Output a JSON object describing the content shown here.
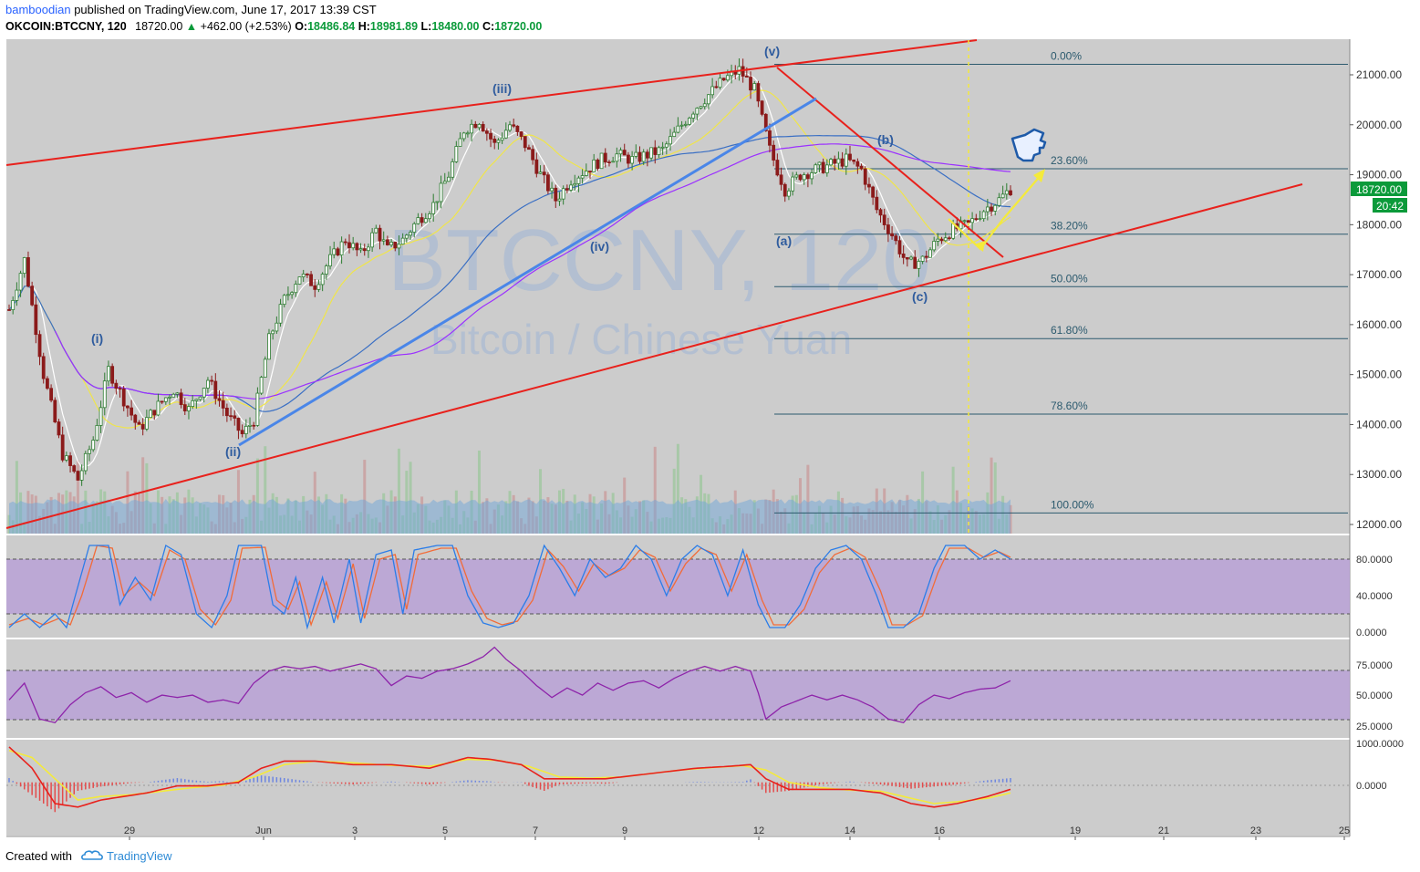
{
  "header": {
    "author": "bamboodian",
    "published_text": "published on TradingView.com, June 17, 2017 13:39 CST",
    "symbol": "OKCOIN:BTCCNY, 120",
    "last": "18720.00",
    "change": "+462.00 (+2.53%)",
    "o_label": "O:",
    "o_value": "18486.84",
    "h_label": "H:",
    "h_value": "18981.89",
    "l_label": "L:",
    "l_value": "18480.00",
    "c_label": "C:",
    "c_value": "18720.00"
  },
  "footer": {
    "created_with": "Created with",
    "brand": "TradingView"
  },
  "watermark": {
    "title": "BTCCNY, 120",
    "subtitle": "Bitcoin / Chinese Yuan"
  },
  "colors": {
    "chart_bg": "#cccccc",
    "up": "#2e7d32",
    "down": "#8b1a1a",
    "trendline": "#e8211c",
    "wave_line": "#4a86e8",
    "fib": "#2c5a6e",
    "sma_yellow": "#f0e54a",
    "sma_blue": "#3a6fc4",
    "sma_purple": "#9b30ff",
    "price_badge": "#0b9a3a",
    "osc_band": "#b9a1d6"
  },
  "price_label": {
    "value": "18720.00",
    "timer": "20:42"
  },
  "chart_data": {
    "type": "candlestick",
    "title": "BTCCNY, 120",
    "subtitle": "Bitcoin / Chinese Yuan",
    "ylim": [
      11800,
      21700
    ],
    "y_ticks": [
      "21000.00",
      "20000.00",
      "19000.00",
      "18000.00",
      "17000.00",
      "16000.00",
      "15000.00",
      "14000.00",
      "13000.00",
      "12000.00"
    ],
    "x_ticks": [
      "29",
      "Jun",
      "3",
      "5",
      "7",
      "9",
      "12",
      "14",
      "16",
      "19",
      "21",
      "23",
      "25"
    ],
    "fib_levels": [
      {
        "label": "0.00%",
        "price": 21210
      },
      {
        "label": "23.60%",
        "price": 19120
      },
      {
        "label": "38.20%",
        "price": 17810
      },
      {
        "label": "50.00%",
        "price": 16760
      },
      {
        "label": "61.80%",
        "price": 15720
      },
      {
        "label": "78.60%",
        "price": 14210
      },
      {
        "label": "100.00%",
        "price": 12230
      }
    ],
    "wave_labels": [
      "(i)",
      "(ii)",
      "(iii)",
      "(iv)",
      "(v)",
      "(a)",
      "(b)",
      "(c)"
    ],
    "close_path": [
      [
        0,
        16300
      ],
      [
        4,
        17300
      ],
      [
        9,
        15000
      ],
      [
        14,
        13400
      ],
      [
        18,
        12900
      ],
      [
        22,
        13700
      ],
      [
        26,
        15100
      ],
      [
        30,
        14500
      ],
      [
        34,
        13900
      ],
      [
        38,
        14300
      ],
      [
        43,
        14700
      ],
      [
        47,
        14300
      ],
      [
        52,
        14900
      ],
      [
        57,
        14200
      ],
      [
        61,
        13800
      ],
      [
        64,
        14100
      ],
      [
        68,
        15700
      ],
      [
        72,
        16500
      ],
      [
        76,
        17000
      ],
      [
        80,
        16800
      ],
      [
        84,
        17300
      ],
      [
        88,
        17700
      ],
      [
        92,
        17400
      ],
      [
        96,
        17900
      ],
      [
        99,
        17500
      ],
      [
        103,
        17700
      ],
      [
        107,
        18100
      ],
      [
        111,
        18400
      ],
      [
        115,
        19000
      ],
      [
        119,
        19900
      ],
      [
        123,
        20100
      ],
      [
        127,
        19600
      ],
      [
        131,
        20000
      ],
      [
        135,
        19600
      ],
      [
        139,
        19000
      ],
      [
        143,
        18500
      ],
      [
        147,
        18900
      ],
      [
        151,
        19100
      ],
      [
        155,
        19300
      ],
      [
        159,
        19400
      ],
      [
        163,
        19300
      ],
      [
        167,
        19400
      ],
      [
        171,
        19500
      ],
      [
        175,
        19900
      ],
      [
        179,
        20300
      ],
      [
        183,
        20600
      ],
      [
        187,
        20900
      ],
      [
        191,
        21100
      ],
      [
        195,
        20700
      ],
      [
        199,
        19500
      ],
      [
        203,
        18700
      ],
      [
        207,
        19000
      ],
      [
        211,
        19100
      ],
      [
        215,
        19200
      ],
      [
        219,
        19300
      ],
      [
        223,
        19100
      ],
      [
        227,
        18300
      ],
      [
        231,
        17800
      ],
      [
        235,
        17200
      ],
      [
        239,
        17300
      ],
      [
        243,
        17700
      ],
      [
        247,
        17900
      ],
      [
        251,
        18000
      ],
      [
        255,
        18300
      ],
      [
        259,
        18500
      ],
      [
        262,
        18720
      ]
    ],
    "volume_path": [
      [
        0,
        12600
      ],
      [
        40,
        12400
      ],
      [
        80,
        12500
      ],
      [
        120,
        12600
      ],
      [
        160,
        12500
      ],
      [
        200,
        12600
      ],
      [
        262,
        12700
      ]
    ],
    "stoch_ylim": [
      0,
      100
    ],
    "stoch_ticks": [
      "80.0000",
      "40.0000",
      "0.0000"
    ],
    "stoch_band": [
      20,
      80
    ],
    "stoch_k": [
      [
        0,
        5
      ],
      [
        4,
        20
      ],
      [
        8,
        5
      ],
      [
        12,
        20
      ],
      [
        15,
        5
      ],
      [
        18,
        50
      ],
      [
        21,
        95
      ],
      [
        26,
        95
      ],
      [
        29,
        30
      ],
      [
        33,
        60
      ],
      [
        37,
        35
      ],
      [
        41,
        95
      ],
      [
        45,
        85
      ],
      [
        49,
        20
      ],
      [
        53,
        5
      ],
      [
        57,
        40
      ],
      [
        60,
        95
      ],
      [
        66,
        95
      ],
      [
        69,
        30
      ],
      [
        72,
        20
      ],
      [
        75,
        60
      ],
      [
        78,
        5
      ],
      [
        82,
        60
      ],
      [
        85,
        10
      ],
      [
        89,
        80
      ],
      [
        92,
        10
      ],
      [
        96,
        85
      ],
      [
        100,
        90
      ],
      [
        103,
        20
      ],
      [
        106,
        90
      ],
      [
        112,
        95
      ],
      [
        116,
        95
      ],
      [
        120,
        40
      ],
      [
        124,
        10
      ],
      [
        128,
        5
      ],
      [
        132,
        10
      ],
      [
        136,
        40
      ],
      [
        140,
        95
      ],
      [
        144,
        70
      ],
      [
        148,
        40
      ],
      [
        152,
        80
      ],
      [
        156,
        60
      ],
      [
        160,
        70
      ],
      [
        164,
        95
      ],
      [
        168,
        80
      ],
      [
        172,
        40
      ],
      [
        176,
        80
      ],
      [
        180,
        95
      ],
      [
        184,
        85
      ],
      [
        188,
        40
      ],
      [
        192,
        90
      ],
      [
        196,
        30
      ],
      [
        199,
        5
      ],
      [
        203,
        5
      ],
      [
        207,
        30
      ],
      [
        211,
        70
      ],
      [
        215,
        90
      ],
      [
        219,
        95
      ],
      [
        223,
        80
      ],
      [
        227,
        40
      ],
      [
        230,
        5
      ],
      [
        234,
        5
      ],
      [
        238,
        20
      ],
      [
        242,
        70
      ],
      [
        245,
        95
      ],
      [
        250,
        95
      ],
      [
        254,
        80
      ],
      [
        258,
        90
      ],
      [
        262,
        80
      ]
    ],
    "stoch_d": [
      [
        0,
        8
      ],
      [
        5,
        15
      ],
      [
        9,
        8
      ],
      [
        13,
        15
      ],
      [
        16,
        8
      ],
      [
        19,
        40
      ],
      [
        23,
        95
      ],
      [
        27,
        92
      ],
      [
        30,
        40
      ],
      [
        34,
        55
      ],
      [
        38,
        40
      ],
      [
        42,
        90
      ],
      [
        46,
        80
      ],
      [
        50,
        25
      ],
      [
        54,
        8
      ],
      [
        58,
        35
      ],
      [
        61,
        92
      ],
      [
        67,
        93
      ],
      [
        70,
        35
      ],
      [
        73,
        25
      ],
      [
        76,
        55
      ],
      [
        79,
        8
      ],
      [
        83,
        55
      ],
      [
        86,
        15
      ],
      [
        90,
        75
      ],
      [
        93,
        15
      ],
      [
        97,
        80
      ],
      [
        101,
        85
      ],
      [
        104,
        25
      ],
      [
        107,
        85
      ],
      [
        113,
        92
      ],
      [
        117,
        92
      ],
      [
        121,
        45
      ],
      [
        125,
        15
      ],
      [
        129,
        8
      ],
      [
        133,
        12
      ],
      [
        137,
        35
      ],
      [
        141,
        90
      ],
      [
        145,
        72
      ],
      [
        149,
        45
      ],
      [
        153,
        75
      ],
      [
        157,
        62
      ],
      [
        161,
        70
      ],
      [
        165,
        90
      ],
      [
        169,
        82
      ],
      [
        173,
        45
      ],
      [
        177,
        75
      ],
      [
        181,
        92
      ],
      [
        185,
        85
      ],
      [
        189,
        45
      ],
      [
        193,
        85
      ],
      [
        197,
        35
      ],
      [
        200,
        8
      ],
      [
        204,
        8
      ],
      [
        208,
        25
      ],
      [
        212,
        65
      ],
      [
        216,
        85
      ],
      [
        220,
        92
      ],
      [
        224,
        82
      ],
      [
        228,
        45
      ],
      [
        231,
        8
      ],
      [
        235,
        8
      ],
      [
        239,
        18
      ],
      [
        243,
        65
      ],
      [
        246,
        92
      ],
      [
        251,
        92
      ],
      [
        255,
        82
      ],
      [
        259,
        88
      ],
      [
        262,
        82
      ]
    ],
    "rsi_ylim": [
      15,
      95
    ],
    "rsi_ticks": [
      "75.0000",
      "50.0000",
      "25.0000"
    ],
    "rsi_band": [
      30,
      70
    ],
    "rsi": [
      [
        0,
        46
      ],
      [
        4,
        60
      ],
      [
        8,
        30
      ],
      [
        12,
        27
      ],
      [
        16,
        42
      ],
      [
        20,
        52
      ],
      [
        24,
        57
      ],
      [
        28,
        48
      ],
      [
        32,
        52
      ],
      [
        36,
        44
      ],
      [
        40,
        50
      ],
      [
        44,
        48
      ],
      [
        48,
        50
      ],
      [
        52,
        44
      ],
      [
        56,
        46
      ],
      [
        60,
        43
      ],
      [
        64,
        60
      ],
      [
        68,
        70
      ],
      [
        72,
        74
      ],
      [
        76,
        72
      ],
      [
        80,
        74
      ],
      [
        84,
        70
      ],
      [
        88,
        73
      ],
      [
        92,
        76
      ],
      [
        96,
        72
      ],
      [
        100,
        58
      ],
      [
        104,
        66
      ],
      [
        108,
        64
      ],
      [
        112,
        70
      ],
      [
        116,
        72
      ],
      [
        120,
        76
      ],
      [
        124,
        82
      ],
      [
        127,
        90
      ],
      [
        130,
        80
      ],
      [
        134,
        70
      ],
      [
        138,
        58
      ],
      [
        142,
        48
      ],
      [
        146,
        56
      ],
      [
        150,
        50
      ],
      [
        154,
        60
      ],
      [
        158,
        54
      ],
      [
        162,
        60
      ],
      [
        166,
        62
      ],
      [
        170,
        56
      ],
      [
        174,
        64
      ],
      [
        178,
        70
      ],
      [
        182,
        74
      ],
      [
        186,
        70
      ],
      [
        190,
        74
      ],
      [
        194,
        70
      ],
      [
        196,
        52
      ],
      [
        198,
        30
      ],
      [
        202,
        40
      ],
      [
        206,
        45
      ],
      [
        210,
        50
      ],
      [
        214,
        46
      ],
      [
        218,
        50
      ],
      [
        222,
        46
      ],
      [
        226,
        40
      ],
      [
        230,
        30
      ],
      [
        234,
        27
      ],
      [
        238,
        42
      ],
      [
        242,
        50
      ],
      [
        246,
        47
      ],
      [
        250,
        52
      ],
      [
        254,
        55
      ],
      [
        258,
        56
      ],
      [
        262,
        62
      ]
    ],
    "macd_ylim": [
      -1400,
      1100
    ],
    "macd_ticks": [
      "1000.0000",
      "0.0000"
    ],
    "macd_line": [
      [
        0,
        1000
      ],
      [
        6,
        400
      ],
      [
        12,
        -600
      ],
      [
        18,
        -700
      ],
      [
        24,
        -500
      ],
      [
        30,
        -400
      ],
      [
        36,
        -300
      ],
      [
        44,
        -100
      ],
      [
        52,
        -100
      ],
      [
        60,
        0
      ],
      [
        66,
        400
      ],
      [
        72,
        600
      ],
      [
        80,
        600
      ],
      [
        90,
        500
      ],
      [
        100,
        500
      ],
      [
        110,
        400
      ],
      [
        120,
        700
      ],
      [
        126,
        650
      ],
      [
        134,
        500
      ],
      [
        140,
        100
      ],
      [
        148,
        100
      ],
      [
        156,
        100
      ],
      [
        164,
        200
      ],
      [
        172,
        300
      ],
      [
        180,
        400
      ],
      [
        188,
        450
      ],
      [
        194,
        500
      ],
      [
        198,
        100
      ],
      [
        204,
        -200
      ],
      [
        212,
        -200
      ],
      [
        220,
        -200
      ],
      [
        228,
        -300
      ],
      [
        236,
        -600
      ],
      [
        242,
        -700
      ],
      [
        248,
        -600
      ],
      [
        256,
        -400
      ],
      [
        262,
        -200
      ]
    ],
    "signal_line": [
      [
        0,
        900
      ],
      [
        6,
        700
      ],
      [
        12,
        100
      ],
      [
        18,
        -500
      ],
      [
        24,
        -400
      ],
      [
        32,
        -350
      ],
      [
        40,
        -250
      ],
      [
        48,
        -150
      ],
      [
        56,
        -80
      ],
      [
        64,
        150
      ],
      [
        72,
        500
      ],
      [
        80,
        600
      ],
      [
        90,
        550
      ],
      [
        100,
        480
      ],
      [
        110,
        450
      ],
      [
        120,
        650
      ],
      [
        128,
        620
      ],
      [
        136,
        450
      ],
      [
        144,
        150
      ],
      [
        152,
        120
      ],
      [
        160,
        150
      ],
      [
        168,
        250
      ],
      [
        176,
        350
      ],
      [
        184,
        420
      ],
      [
        192,
        470
      ],
      [
        198,
        350
      ],
      [
        204,
        0
      ],
      [
        212,
        -150
      ],
      [
        220,
        -220
      ],
      [
        228,
        -250
      ],
      [
        236,
        -450
      ],
      [
        242,
        -600
      ],
      [
        248,
        -550
      ],
      [
        256,
        -450
      ],
      [
        262,
        -300
      ]
    ]
  }
}
